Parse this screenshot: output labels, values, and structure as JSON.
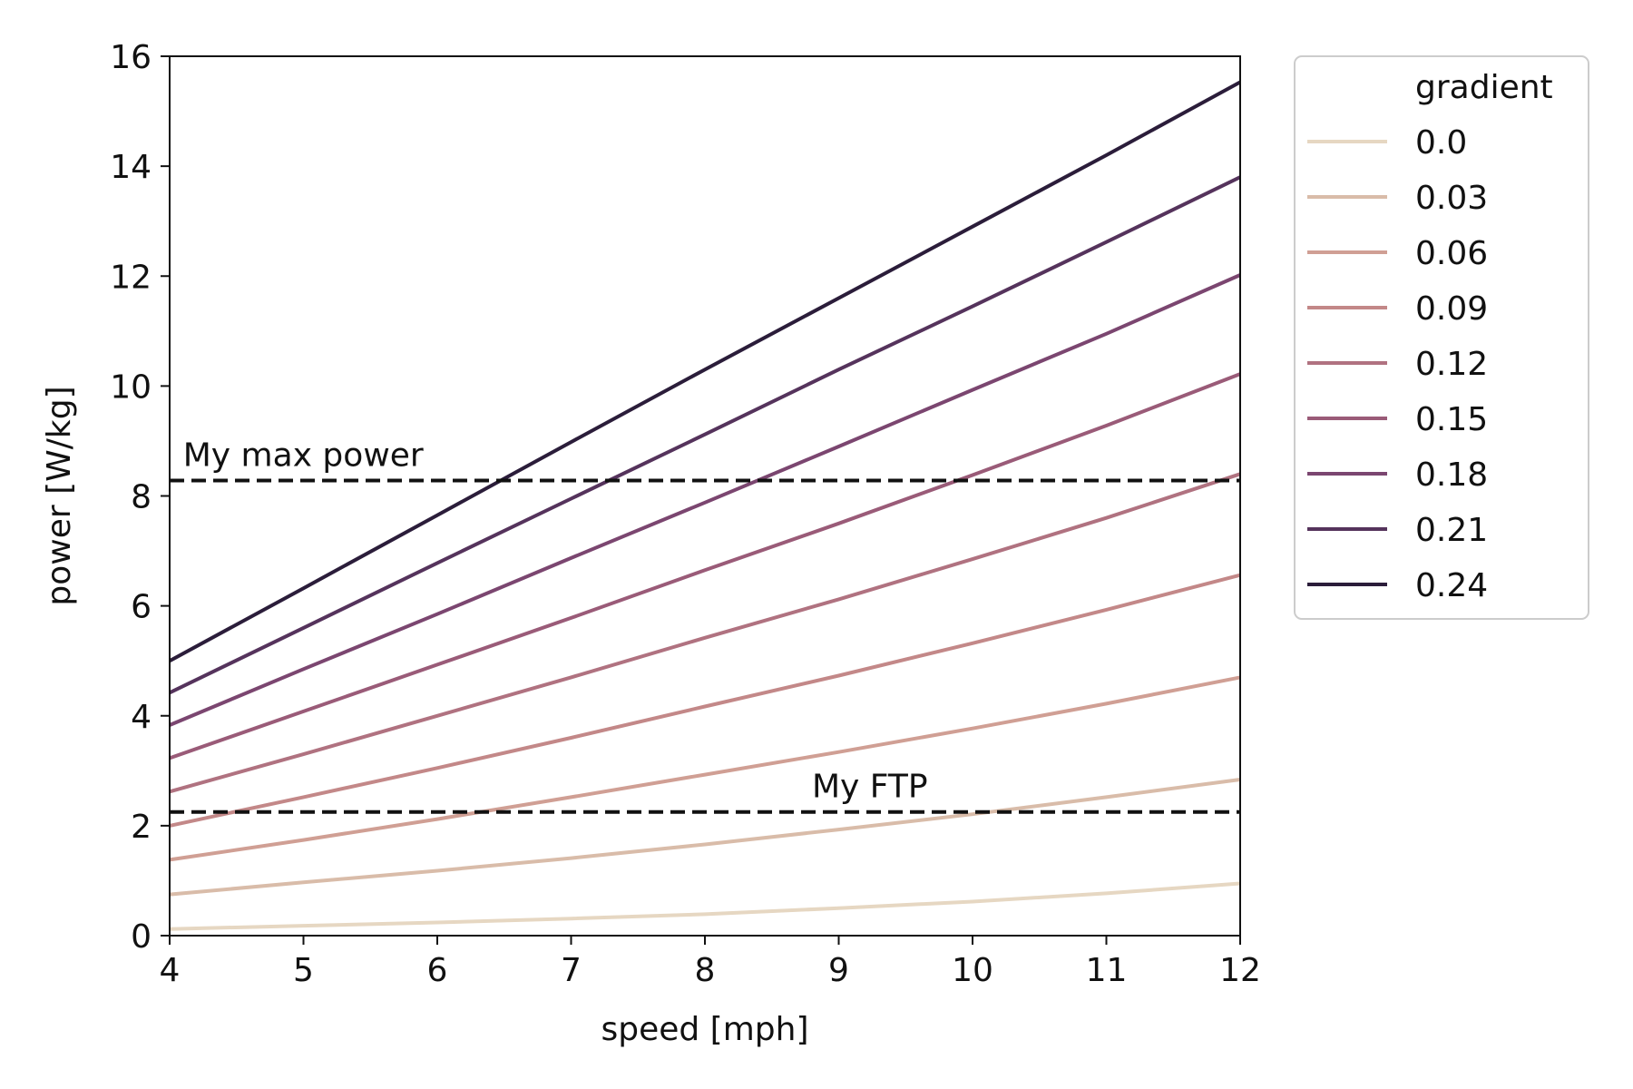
{
  "chart_data": {
    "type": "line",
    "xlabel": "speed [mph]",
    "ylabel": "power [W/kg]",
    "xlim": [
      4,
      12
    ],
    "ylim": [
      0,
      16
    ],
    "xticks": [
      4,
      5,
      6,
      7,
      8,
      9,
      10,
      11,
      12
    ],
    "yticks": [
      0,
      2,
      4,
      6,
      8,
      10,
      12,
      14,
      16
    ],
    "grid": false,
    "legend": {
      "title": "gradient",
      "placement": "outside-top-right"
    },
    "x": [
      4,
      5,
      6,
      7,
      8,
      9,
      10,
      11,
      12
    ],
    "series": [
      {
        "name": "0.0",
        "color": "#e6d7c2",
        "values": [
          0.12,
          0.18,
          0.24,
          0.31,
          0.39,
          0.5,
          0.62,
          0.77,
          0.95
        ]
      },
      {
        "name": "0.03",
        "color": "#d9bca9",
        "values": [
          0.75,
          0.97,
          1.18,
          1.41,
          1.66,
          1.93,
          2.21,
          2.52,
          2.84
        ]
      },
      {
        "name": "0.06",
        "color": "#d09f94",
        "values": [
          1.38,
          1.74,
          2.12,
          2.52,
          2.93,
          3.34,
          3.77,
          4.22,
          4.7
        ]
      },
      {
        "name": "0.09",
        "color": "#c38888",
        "values": [
          2.0,
          2.52,
          3.05,
          3.6,
          4.17,
          4.73,
          5.32,
          5.93,
          6.56
        ]
      },
      {
        "name": "0.12",
        "color": "#b07280",
        "values": [
          2.62,
          3.3,
          4.0,
          4.7,
          5.42,
          6.12,
          6.85,
          7.6,
          8.4
        ]
      },
      {
        "name": "0.15",
        "color": "#9a5b78",
        "values": [
          3.23,
          4.08,
          4.93,
          5.78,
          6.65,
          7.5,
          8.38,
          9.28,
          10.22
        ]
      },
      {
        "name": "0.18",
        "color": "#7b4670",
        "values": [
          3.83,
          4.85,
          5.85,
          6.87,
          7.88,
          8.9,
          9.93,
          10.95,
          12.02
        ]
      },
      {
        "name": "0.21",
        "color": "#55335c",
        "values": [
          4.42,
          5.6,
          6.78,
          7.95,
          9.12,
          10.3,
          11.45,
          12.62,
          13.8
        ]
      },
      {
        "name": "0.24",
        "color": "#2b1d3a",
        "values": [
          5.0,
          6.32,
          7.65,
          8.98,
          10.3,
          11.6,
          12.9,
          14.2,
          15.53
        ]
      }
    ],
    "hlines": [
      {
        "id": "max-power",
        "y": 8.28,
        "label": "My max power",
        "label_x": 4.1
      },
      {
        "id": "ftp",
        "y": 2.25,
        "label": "My FTP",
        "label_x": 8.8
      }
    ]
  }
}
